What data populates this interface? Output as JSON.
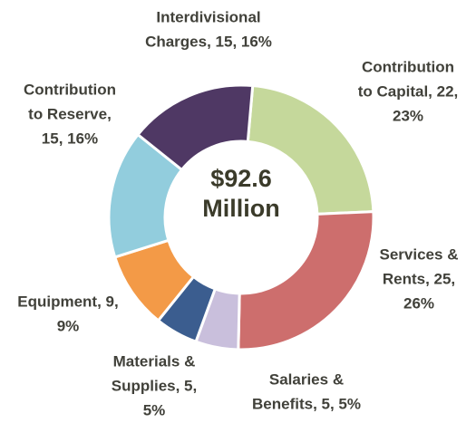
{
  "chart_data": {
    "type": "donut",
    "center_label": [
      "$92.6",
      "Million"
    ],
    "values": [
      22,
      25,
      5,
      5,
      9,
      15,
      15
    ],
    "value_labels": [
      [
        "Contribution",
        "to Capital, 22,",
        "23%"
      ],
      [
        "Services &",
        "Rents, 25,",
        "26%"
      ],
      [
        "Salaries &",
        "Benefits, 5, 5%"
      ],
      [
        "Materials &",
        "Supplies, 5,",
        "5%"
      ],
      [
        "Equipment, 9,",
        "9%"
      ],
      [
        "Contribution",
        "to Reserve,",
        "15, 16%"
      ],
      [
        "Interdivisional",
        "Charges, 15, 16%"
      ]
    ],
    "colors": [
      "#c5d89b",
      "#cd6e6d",
      "#c9bfdc",
      "#3b5d8f",
      "#f39a47",
      "#92cddd",
      "#4f3864"
    ]
  }
}
